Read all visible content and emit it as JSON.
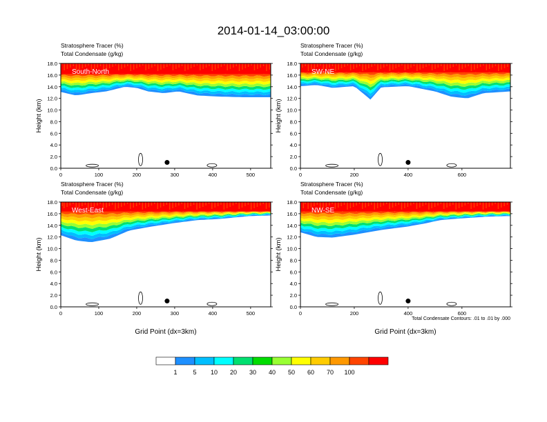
{
  "title": "2014-01-14_03:00:00",
  "colors": {
    "scale": [
      "#ffffff",
      "#1e90ff",
      "#00bfff",
      "#00ffff",
      "#00e070",
      "#00dd00",
      "#99ff33",
      "#ffff00",
      "#ffcc00",
      "#ff9900",
      "#ff4400",
      "#ff0000"
    ],
    "contour": "#000000"
  },
  "colorbar": {
    "labels": [
      "1",
      "5",
      "10",
      "20",
      "30",
      "40",
      "50",
      "60",
      "70",
      "100"
    ]
  },
  "chart_data": [
    {
      "type": "heatmap",
      "panel": "South-North",
      "position": "top-left",
      "title_line1": "Stratosphere Tracer   (%)",
      "title_line2": "Total Condensate   (g/kg)",
      "ylabel": "Height (km)",
      "xlabel": "",
      "xlim": [
        0,
        553
      ],
      "ylim": [
        0,
        18
      ],
      "xticks": [
        "0",
        "100",
        "200",
        "300",
        "400",
        "500"
      ],
      "xtick_values": [
        0,
        100,
        200,
        300,
        400,
        500
      ],
      "yticks": [
        "0.0",
        "2.0",
        "4.0",
        "6.0",
        "8.0",
        "10.0",
        "12.0",
        "14.0",
        "16.0",
        "18.0"
      ],
      "marker": {
        "x": 280,
        "y": 1.0
      },
      "tracer_base_km": [
        [
          0,
          13.1
        ],
        [
          40,
          12.5
        ],
        [
          80,
          12.9
        ],
        [
          120,
          13.2
        ],
        [
          170,
          14.0
        ],
        [
          200,
          13.8
        ],
        [
          230,
          13.2
        ],
        [
          270,
          12.9
        ],
        [
          310,
          13.2
        ],
        [
          360,
          12.5
        ],
        [
          420,
          12.3
        ],
        [
          480,
          12.2
        ],
        [
          553,
          12.2
        ]
      ],
      "tracer_top_km": 16.3
    },
    {
      "type": "heatmap",
      "panel": "SW-NE",
      "position": "top-right",
      "title_line1": "Stratosphere Tracer   (%)",
      "title_line2": "Total Condensate   (g/kg)",
      "ylabel": "Height (km)",
      "xlabel": "",
      "xlim": [
        0,
        780
      ],
      "ylim": [
        0,
        18
      ],
      "xticks": [
        "0",
        "200",
        "400",
        "600"
      ],
      "xtick_values": [
        0,
        200,
        400,
        600
      ],
      "yticks": [
        "0.0",
        "2.0",
        "4.0",
        "6.0",
        "8.0",
        "10.0",
        "12.0",
        "14.0",
        "16.0",
        "18.0"
      ],
      "marker": {
        "x": 400,
        "y": 1.0
      },
      "tracer_base_km": [
        [
          0,
          14.1
        ],
        [
          60,
          14.3
        ],
        [
          120,
          13.8
        ],
        [
          200,
          14.1
        ],
        [
          260,
          11.8
        ],
        [
          300,
          13.9
        ],
        [
          400,
          14.1
        ],
        [
          500,
          13.2
        ],
        [
          560,
          12.3
        ],
        [
          620,
          12.0
        ],
        [
          680,
          12.9
        ],
        [
          780,
          13.2
        ]
      ],
      "tracer_top_km": 16.6
    },
    {
      "type": "heatmap",
      "panel": "West-East",
      "position": "bottom-left",
      "title_line1": "Stratosphere Tracer   (%)",
      "title_line2": "Total Condensate   (g/kg)",
      "ylabel": "Height (km)",
      "xlabel": "Grid Point (dx=3km)",
      "xlim": [
        0,
        553
      ],
      "ylim": [
        0,
        18
      ],
      "xticks": [
        "0",
        "100",
        "200",
        "300",
        "400",
        "500"
      ],
      "xtick_values": [
        0,
        100,
        200,
        300,
        400,
        500
      ],
      "yticks": [
        "0.0",
        "2.0",
        "4.0",
        "6.0",
        "8.0",
        "10.0",
        "12.0",
        "14.0",
        "16.0",
        "18.0"
      ],
      "marker": {
        "x": 280,
        "y": 1.0
      },
      "tracer_base_km": [
        [
          0,
          12.3
        ],
        [
          40,
          11.4
        ],
        [
          80,
          11.1
        ],
        [
          130,
          11.7
        ],
        [
          180,
          13.1
        ],
        [
          240,
          13.8
        ],
        [
          300,
          14.4
        ],
        [
          360,
          14.9
        ],
        [
          420,
          15.1
        ],
        [
          500,
          15.6
        ],
        [
          553,
          15.7
        ]
      ],
      "tracer_top_km": 16.5
    },
    {
      "type": "heatmap",
      "panel": "NW-SE",
      "position": "bottom-right",
      "title_line1": "Stratosphere Tracer   (%)",
      "title_line2": "Total Condensate   (g/kg)",
      "ylabel": "Height (km)",
      "xlabel": "Grid Point (dx=3km)",
      "note": "Total Condensate Contours: .01 to .01 by .000",
      "xlim": [
        0,
        780
      ],
      "ylim": [
        0,
        18
      ],
      "xticks": [
        "0",
        "200",
        "400",
        "600"
      ],
      "xtick_values": [
        0,
        200,
        400,
        600
      ],
      "yticks": [
        "0.0",
        "2.0",
        "4.0",
        "6.0",
        "8.0",
        "10.0",
        "12.0",
        "14.0",
        "16.0",
        "18.0"
      ],
      "marker": {
        "x": 400,
        "y": 1.0
      },
      "tracer_base_km": [
        [
          0,
          12.8
        ],
        [
          60,
          12.0
        ],
        [
          120,
          11.9
        ],
        [
          200,
          12.4
        ],
        [
          300,
          13.2
        ],
        [
          400,
          13.8
        ],
        [
          460,
          14.3
        ],
        [
          520,
          14.9
        ],
        [
          600,
          15.2
        ],
        [
          700,
          15.5
        ],
        [
          780,
          15.6
        ]
      ],
      "tracer_top_km": 16.5
    }
  ]
}
